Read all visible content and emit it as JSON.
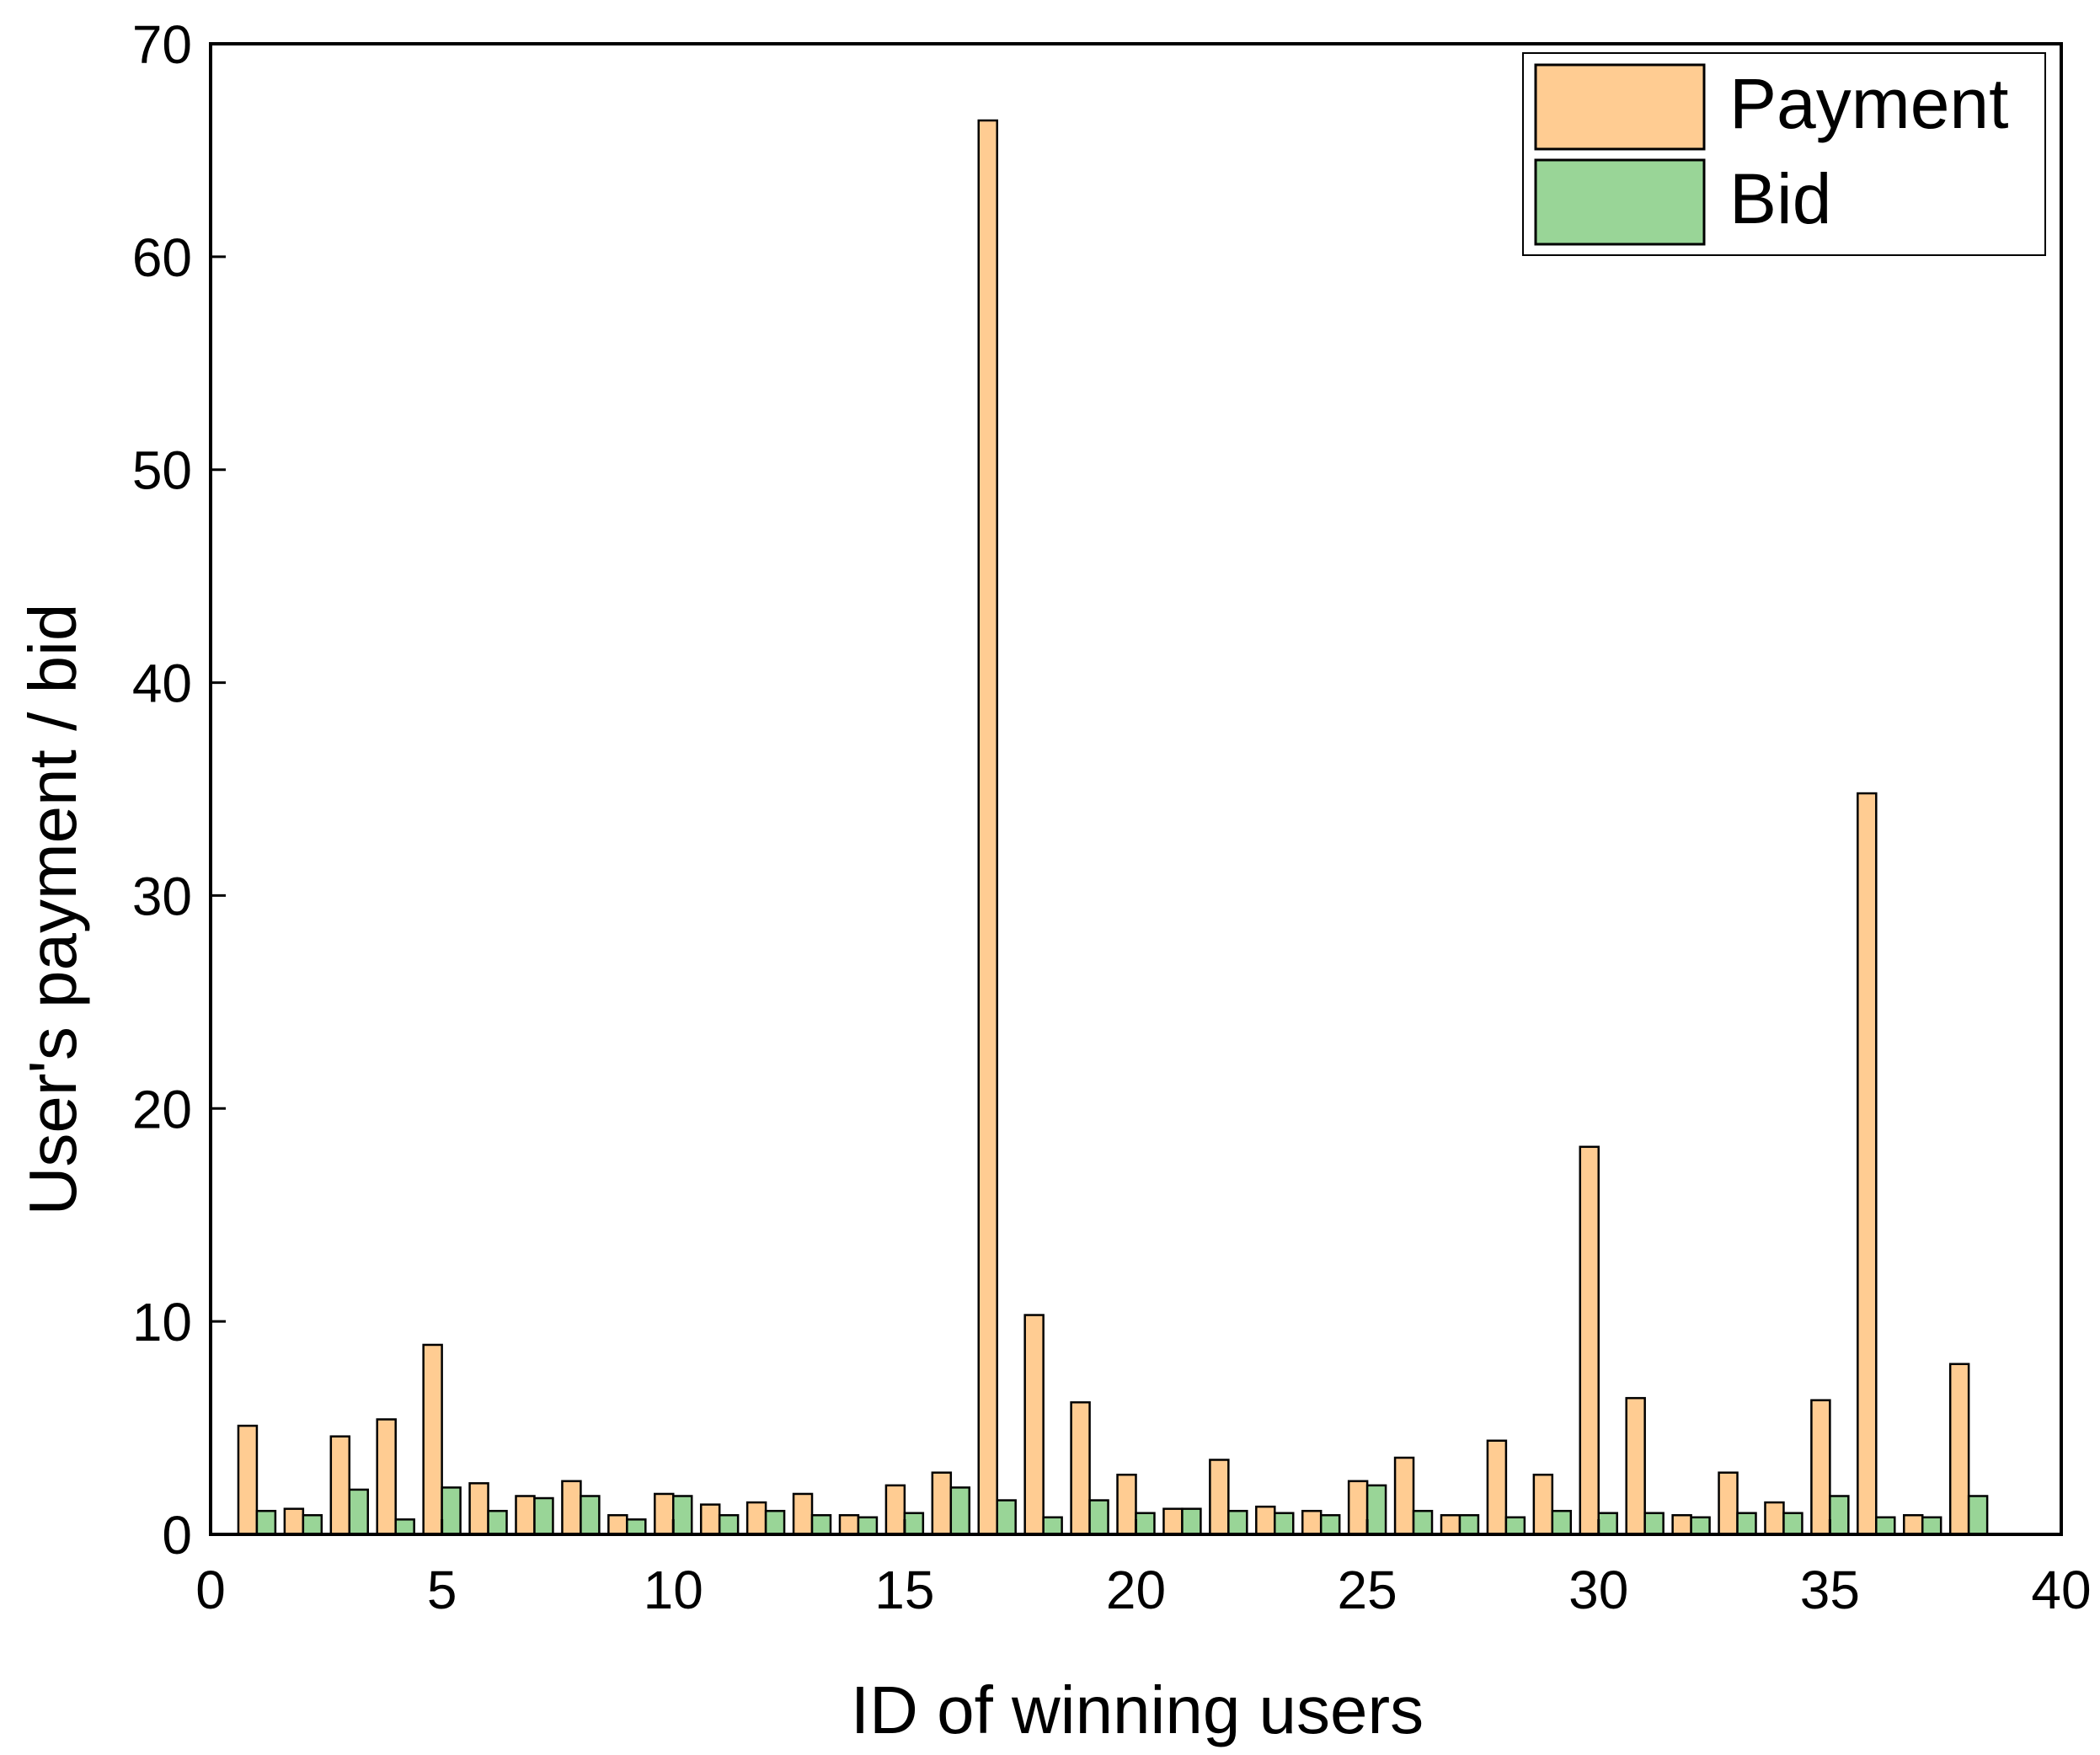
{
  "chart_data": {
    "type": "bar",
    "xlabel": "ID of winning users",
    "ylabel": "User's payment / bid",
    "xlim": [
      0,
      40
    ],
    "ylim": [
      0,
      70
    ],
    "xticks": [
      "0",
      "5",
      "10",
      "15",
      "20",
      "25",
      "30",
      "35",
      "40"
    ],
    "yticks": [
      "0",
      "10",
      "20",
      "30",
      "40",
      "50",
      "60",
      "70"
    ],
    "grid": false,
    "legend_position": "top-right",
    "categories": [
      1,
      2,
      3,
      4,
      5,
      6,
      7,
      8,
      9,
      10,
      11,
      12,
      13,
      14,
      15,
      16,
      17,
      18,
      19,
      20,
      21,
      22,
      23,
      24,
      25,
      26,
      27,
      28,
      29,
      30,
      31,
      32,
      33,
      34,
      35,
      36,
      37,
      38
    ],
    "series": [
      {
        "name": "Payment",
        "color": "#FFCC92",
        "values": [
          5.1,
          1.2,
          4.6,
          5.4,
          8.9,
          2.4,
          1.8,
          2.5,
          0.9,
          1.9,
          1.4,
          1.5,
          1.9,
          0.9,
          2.3,
          2.9,
          66.4,
          10.3,
          6.2,
          2.8,
          1.2,
          3.5,
          1.3,
          1.1,
          2.5,
          3.6,
          0.9,
          4.4,
          2.8,
          18.2,
          6.4,
          0.9,
          2.9,
          1.5,
          6.3,
          34.8,
          0.9,
          8.0
        ]
      },
      {
        "name": "Bid",
        "color": "#99D597",
        "values": [
          1.1,
          0.9,
          2.1,
          0.7,
          2.2,
          1.1,
          1.7,
          1.8,
          0.7,
          1.8,
          0.9,
          1.1,
          0.9,
          0.8,
          1.0,
          2.2,
          1.6,
          0.8,
          1.6,
          1.0,
          1.2,
          1.1,
          1.0,
          0.9,
          2.3,
          1.1,
          0.9,
          0.8,
          1.1,
          1.0,
          1.0,
          0.8,
          1.0,
          1.0,
          1.8,
          0.8,
          0.8,
          1.8
        ]
      }
    ]
  }
}
